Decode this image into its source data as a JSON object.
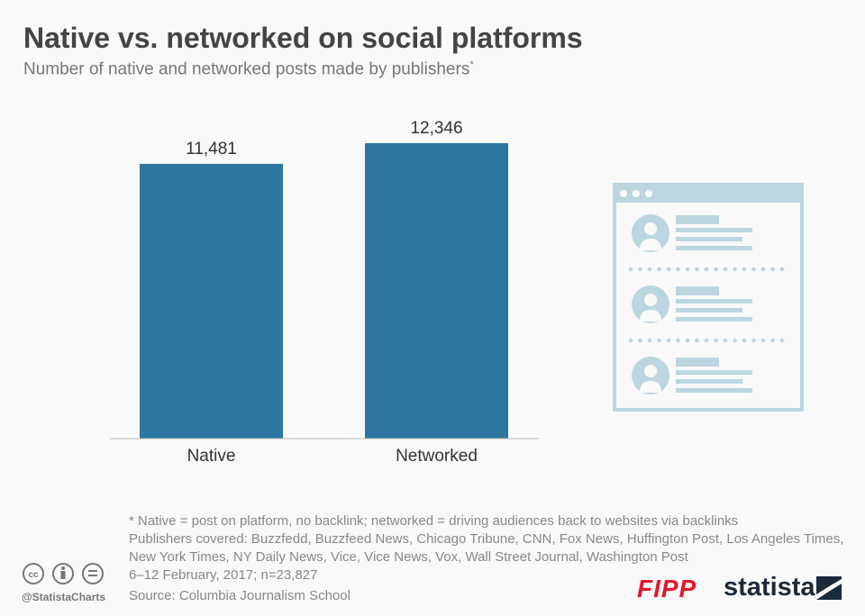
{
  "header": {
    "title": "Native vs. networked on social platforms",
    "subtitle": "Number of native and networked posts made by publishers",
    "subtitle_mark": "*"
  },
  "chart_data": {
    "type": "bar",
    "title": "Native vs. networked on social platforms",
    "subtitle": "Number of native and networked posts made by publishers*",
    "categories": [
      "Native",
      "Networked"
    ],
    "values": [
      11481,
      12346
    ],
    "value_labels": [
      "11,481",
      "12,346"
    ],
    "xlabel": "",
    "ylabel": "",
    "ylim": [
      0,
      14000
    ],
    "grid": false,
    "bar_color": "#2b77a2"
  },
  "footer": {
    "notes": [
      "* Native = post on platform, no backlink; networked = driving audiences back to websites via backlinks",
      "Publishers covered: Buzzfedd, Buzzfeed News, Chicago Tribune, CNN, Fox News, Huffington Post, Los Angeles Times, New York Times, NY Daily News, Vice, Vice News, Vox, Wall Street Journal, Washington Post",
      "6–12 February, 2017; n=23,827"
    ],
    "source": "Source: Columbia Journalism School",
    "handle": "@StatistaCharts",
    "fipp_logo": "FIPP",
    "statista_logo": "statista"
  },
  "colors": {
    "illustration": "#bcd6e0",
    "logo_red": "#e3172d",
    "logo_dark": "#1b2a3a"
  }
}
